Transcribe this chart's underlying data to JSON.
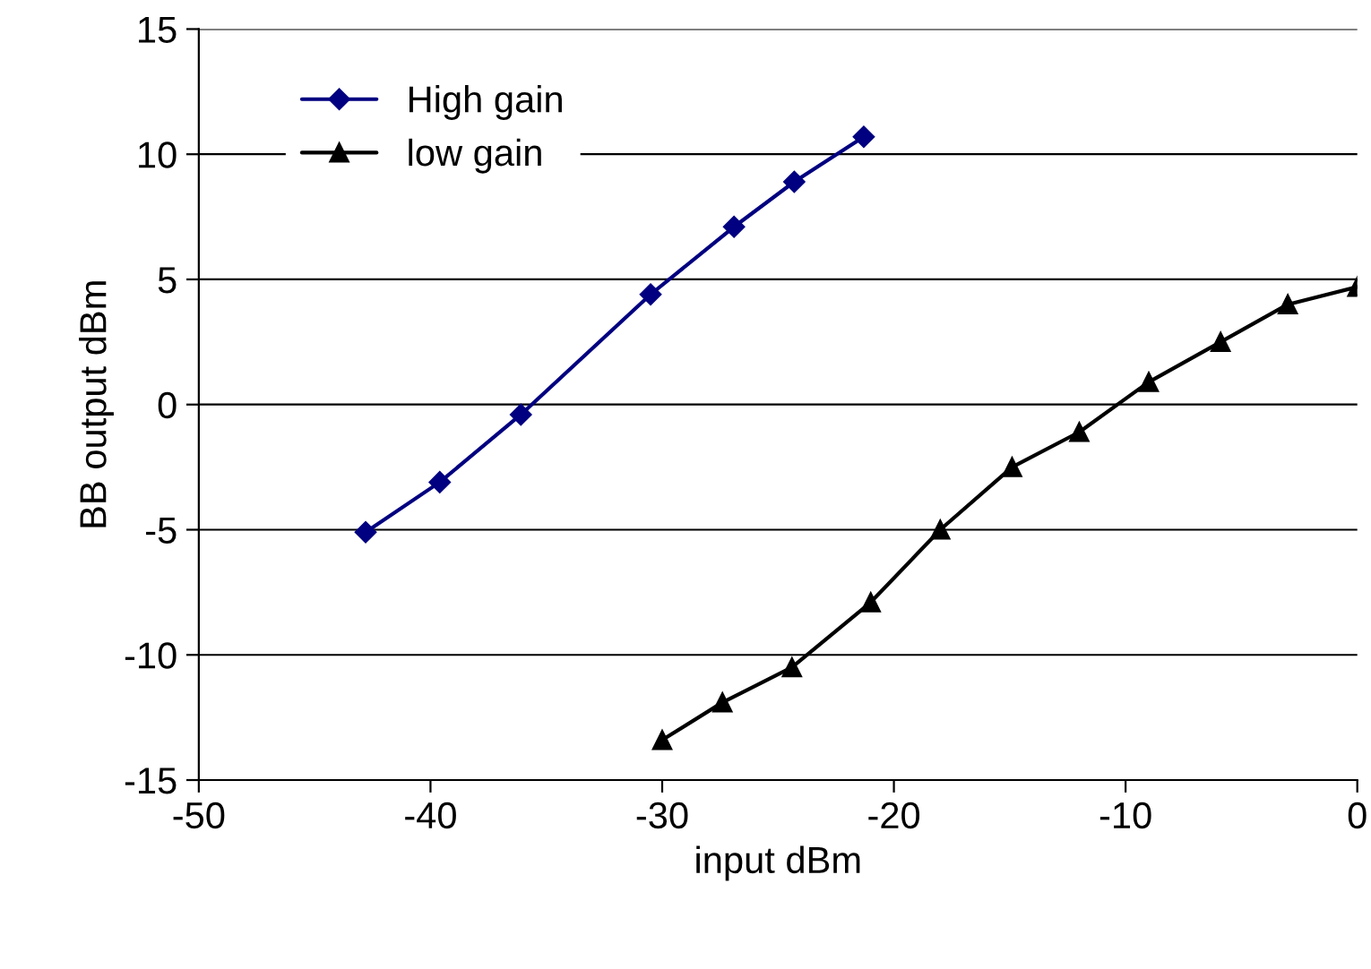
{
  "chart_data": {
    "type": "line",
    "xlabel": "input dBm",
    "ylabel": "BB output dBm",
    "xlim": [
      -50,
      0
    ],
    "xticks": [
      -50,
      -40,
      -30,
      -20,
      -10,
      0
    ],
    "ylim": [
      -15,
      15
    ],
    "yticks": [
      -15,
      -10,
      -5,
      0,
      5,
      10,
      15
    ],
    "grid": "y",
    "legend": "top left",
    "line_style": "solid",
    "series": [
      {
        "name": "High gain",
        "color": "#000080",
        "marker": "diamond",
        "x": [
          -42.8,
          -39.6,
          -36.1,
          -30.5,
          -26.9,
          -24.3,
          -21.3
        ],
        "values": [
          -5.1,
          -3.1,
          -0.4,
          4.4,
          7.1,
          8.9,
          10.7
        ]
      },
      {
        "name": "low gain",
        "color": "#000000",
        "marker": "triangle",
        "x": [
          -30,
          -27.4,
          -24.4,
          -21.0,
          -18.0,
          -14.9,
          -12.0,
          -9.0,
          -5.9,
          -3.0,
          0
        ],
        "values": [
          -13.4,
          -11.9,
          -10.5,
          -7.9,
          -5.0,
          -2.5,
          -1.1,
          0.9,
          2.5,
          4.0,
          4.7
        ]
      }
    ]
  }
}
